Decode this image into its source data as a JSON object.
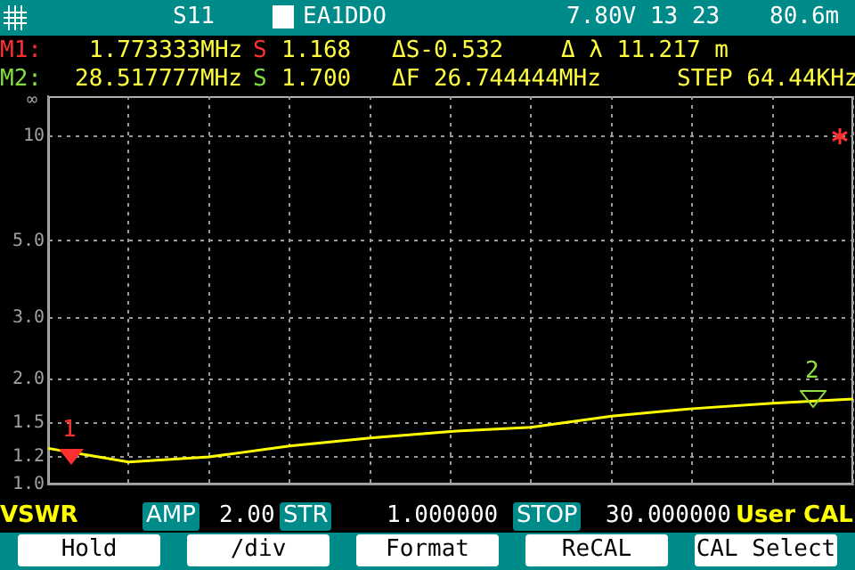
{
  "chart_data": {
    "type": "line",
    "categories": [
      null,
      null,
      null,
      null,
      null,
      null,
      null,
      null,
      null,
      null,
      null
    ],
    "series": [
      {
        "color": "#ffff00",
        "values": [
          1.27,
          1.16,
          1.2,
          1.29,
          1.36,
          1.42,
          1.46,
          1.57,
          1.65,
          1.71,
          1.76
        ]
      }
    ],
    "ylim": [
      1,
      13
    ],
    "yticks": [
      {
        "value": 1,
        "label": "1.0"
      },
      {
        "value": 1.2,
        "label": "1.2"
      },
      {
        "value": 1.5,
        "label": "1.5"
      },
      {
        "value": 2,
        "label": "2.0"
      },
      {
        "value": 3,
        "label": "3.0"
      },
      {
        "value": 5,
        "label": "5.0"
      },
      10
    ],
    "log": "y",
    "grid": true,
    "legend": false,
    "marker": "none",
    "tick_labels": "y",
    "annotations": [
      "S11",
      "EA1DDO",
      "7.80V 13 23",
      "80.6m",
      "M1:",
      "1.773333MHz",
      "S",
      "1.168",
      "ΔS-0.532",
      "Δ λ 11.217 m",
      "M2:",
      "28.517777MHz",
      "S",
      "1.700",
      "ΔF 26.744444MHz",
      "STEP 64.44KHz",
      "VSWR",
      "AMP",
      "2.00",
      "STR",
      "1.000000",
      "STOP",
      "30.000000",
      "User CAL",
      "Hold",
      "/div",
      "Format",
      "ReCAL",
      "CAL Select",
      "∞",
      "1",
      "2"
    ]
  }
}
